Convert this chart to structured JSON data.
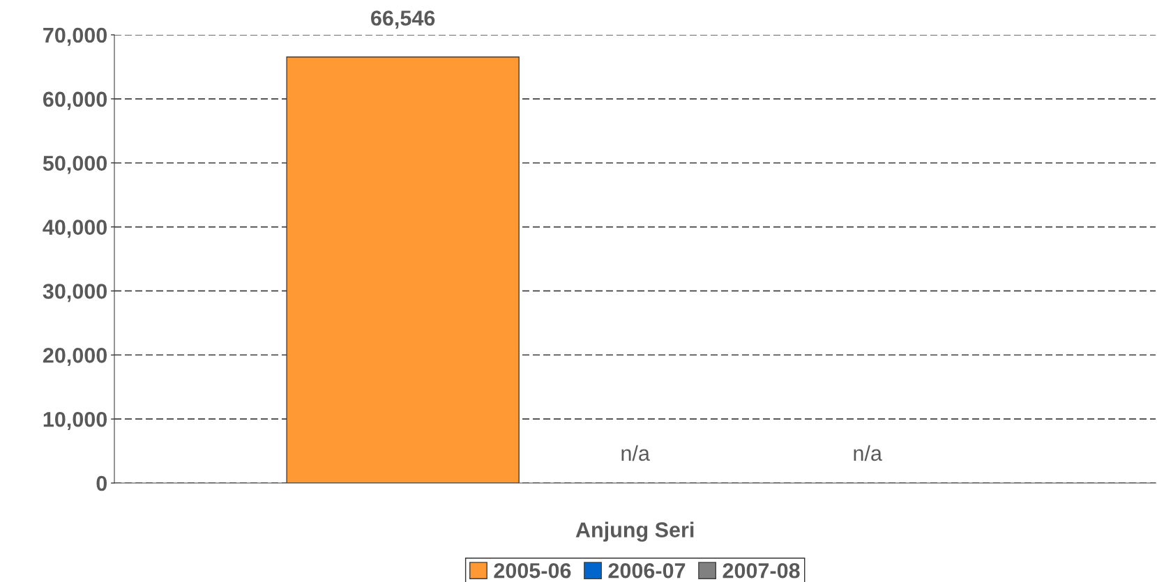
{
  "chart_data": {
    "type": "bar",
    "categories": [
      "Anjung Seri"
    ],
    "series": [
      {
        "name": "2005-06",
        "color": "#ff9933",
        "values": [
          66546
        ],
        "value_labels": [
          "66,546"
        ]
      },
      {
        "name": "2006-07",
        "color": "#0066cc",
        "values": [
          null
        ],
        "value_labels": [
          "n/a"
        ]
      },
      {
        "name": "2007-08",
        "color": "#808080",
        "values": [
          null
        ],
        "value_labels": [
          "n/a"
        ]
      }
    ],
    "ylim": [
      0,
      70000
    ],
    "yticks": [
      {
        "value": 0,
        "label": "0"
      },
      {
        "value": 10000,
        "label": "10,000"
      },
      {
        "value": 20000,
        "label": "20,000"
      },
      {
        "value": 30000,
        "label": "30,000"
      },
      {
        "value": 40000,
        "label": "40,000"
      },
      {
        "value": 50000,
        "label": "50,000"
      },
      {
        "value": 60000,
        "label": "60,000"
      },
      {
        "value": 70000,
        "label": "70,000"
      }
    ],
    "grid": "y",
    "legend": "bottom"
  }
}
